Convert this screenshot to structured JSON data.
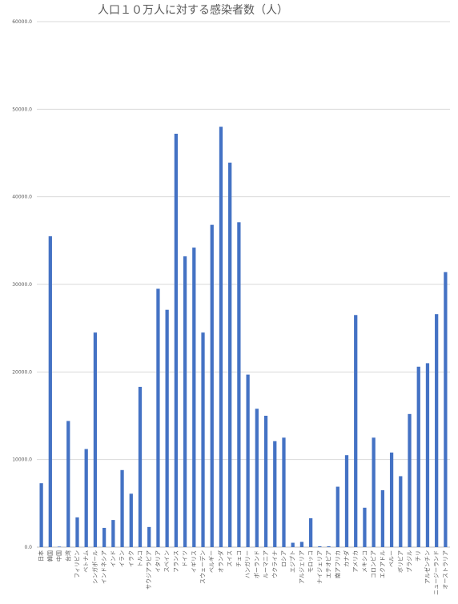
{
  "chart_data": {
    "type": "bar",
    "title": "人口１０万人に対する感染者数（人）",
    "xlabel": "",
    "ylabel": "",
    "ylim": [
      0,
      60000
    ],
    "yticks": [
      "0.0",
      "10000.0",
      "20000.0",
      "30000.0",
      "40000.0",
      "50000.0",
      "60000.0"
    ],
    "grid": true,
    "bar_color": "#4472c4",
    "categories": [
      "日本",
      "韓国",
      "中国",
      "台湾",
      "フィリピン",
      "ベトナム",
      "シンガポール",
      "インドネシア",
      "インド",
      "イラン",
      "イラク",
      "トルコ",
      "サウジアラビア",
      "イタリア",
      "スペイン",
      "フランス",
      "ドイツ",
      "イギリス",
      "スウェーデン",
      "ベルギー",
      "オランダ",
      "スイス",
      "チェコ",
      "ハンガリー",
      "ポーランド",
      "ルーマニア",
      "ウクライナ",
      "ロシア",
      "エジプト",
      "アルジェリア",
      "モロッコ",
      "ナイジェリア",
      "エチオピア",
      "南アフリカ",
      "カナダ",
      "アメリカ",
      "メキシコ",
      "コロンビア",
      "エクアドル",
      "ペルー",
      "ボリビア",
      "ブラジル",
      "チリ",
      "アルゼンチン",
      "ニュージーランド",
      "オーストラリア"
    ],
    "values": [
      7300,
      35500,
      60,
      14400,
      3400,
      11200,
      24500,
      2200,
      3100,
      8800,
      6100,
      18300,
      2300,
      29500,
      27100,
      47200,
      33200,
      34200,
      24500,
      36800,
      48000,
      43900,
      37100,
      19700,
      15800,
      15000,
      12100,
      12500,
      500,
      600,
      3300,
      100,
      100,
      6900,
      10500,
      26500,
      4500,
      12500,
      6500,
      10800,
      8100,
      15200,
      20600,
      21000,
      26600,
      31400
    ]
  }
}
